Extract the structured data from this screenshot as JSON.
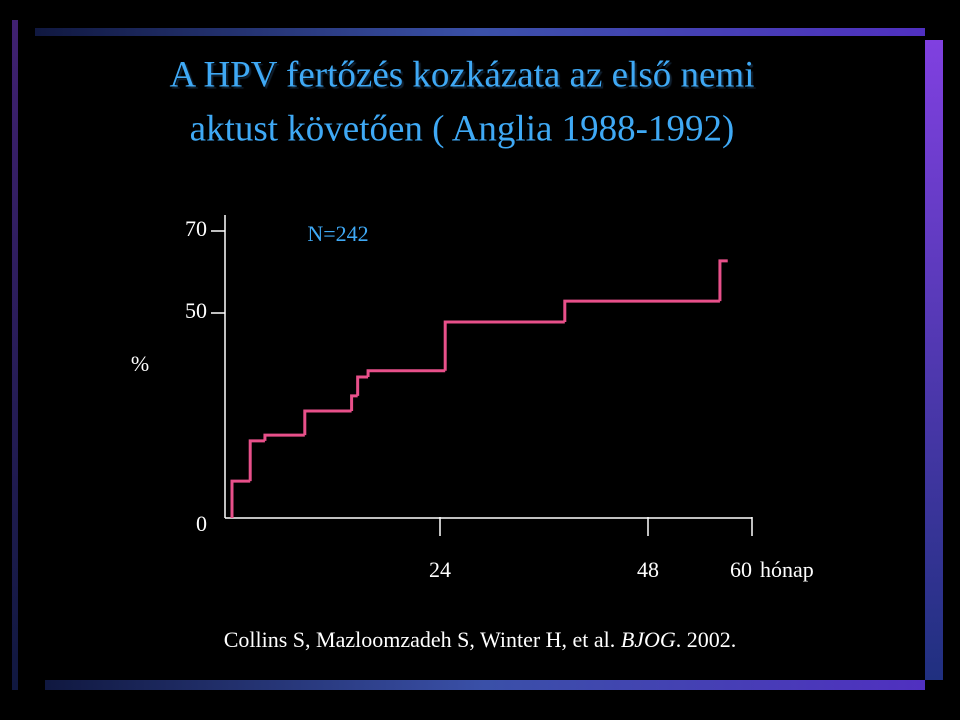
{
  "chart_data": {
    "type": "step",
    "title": [
      "A HPV fertőzés kozkázata az első nemi",
      "aktust követően ( Anglia 1988-1992)"
    ],
    "y_label": "%",
    "x_label": "hónap",
    "annotation": "N=242",
    "x": [
      0,
      0,
      2.1,
      3.8,
      8.4,
      13.8,
      14.5,
      15.7,
      24.6,
      38.4,
      56.3,
      57.2
    ],
    "values": [
      0,
      9,
      18.8,
      20.2,
      26.1,
      29.8,
      34.4,
      35.9,
      47.8,
      52.9,
      62.7,
      62.7
    ],
    "color": "#e8508a",
    "xlim": [
      0,
      60
    ],
    "xticks": [
      24,
      48,
      60
    ],
    "ylim": [
      0,
      70
    ],
    "yticks": [
      0,
      50,
      70
    ],
    "citation": {
      "authors": "Collins S, Mazloomzadeh S, Winter H, et al.",
      "journal": "BJOG",
      "year": ". 2002."
    }
  }
}
